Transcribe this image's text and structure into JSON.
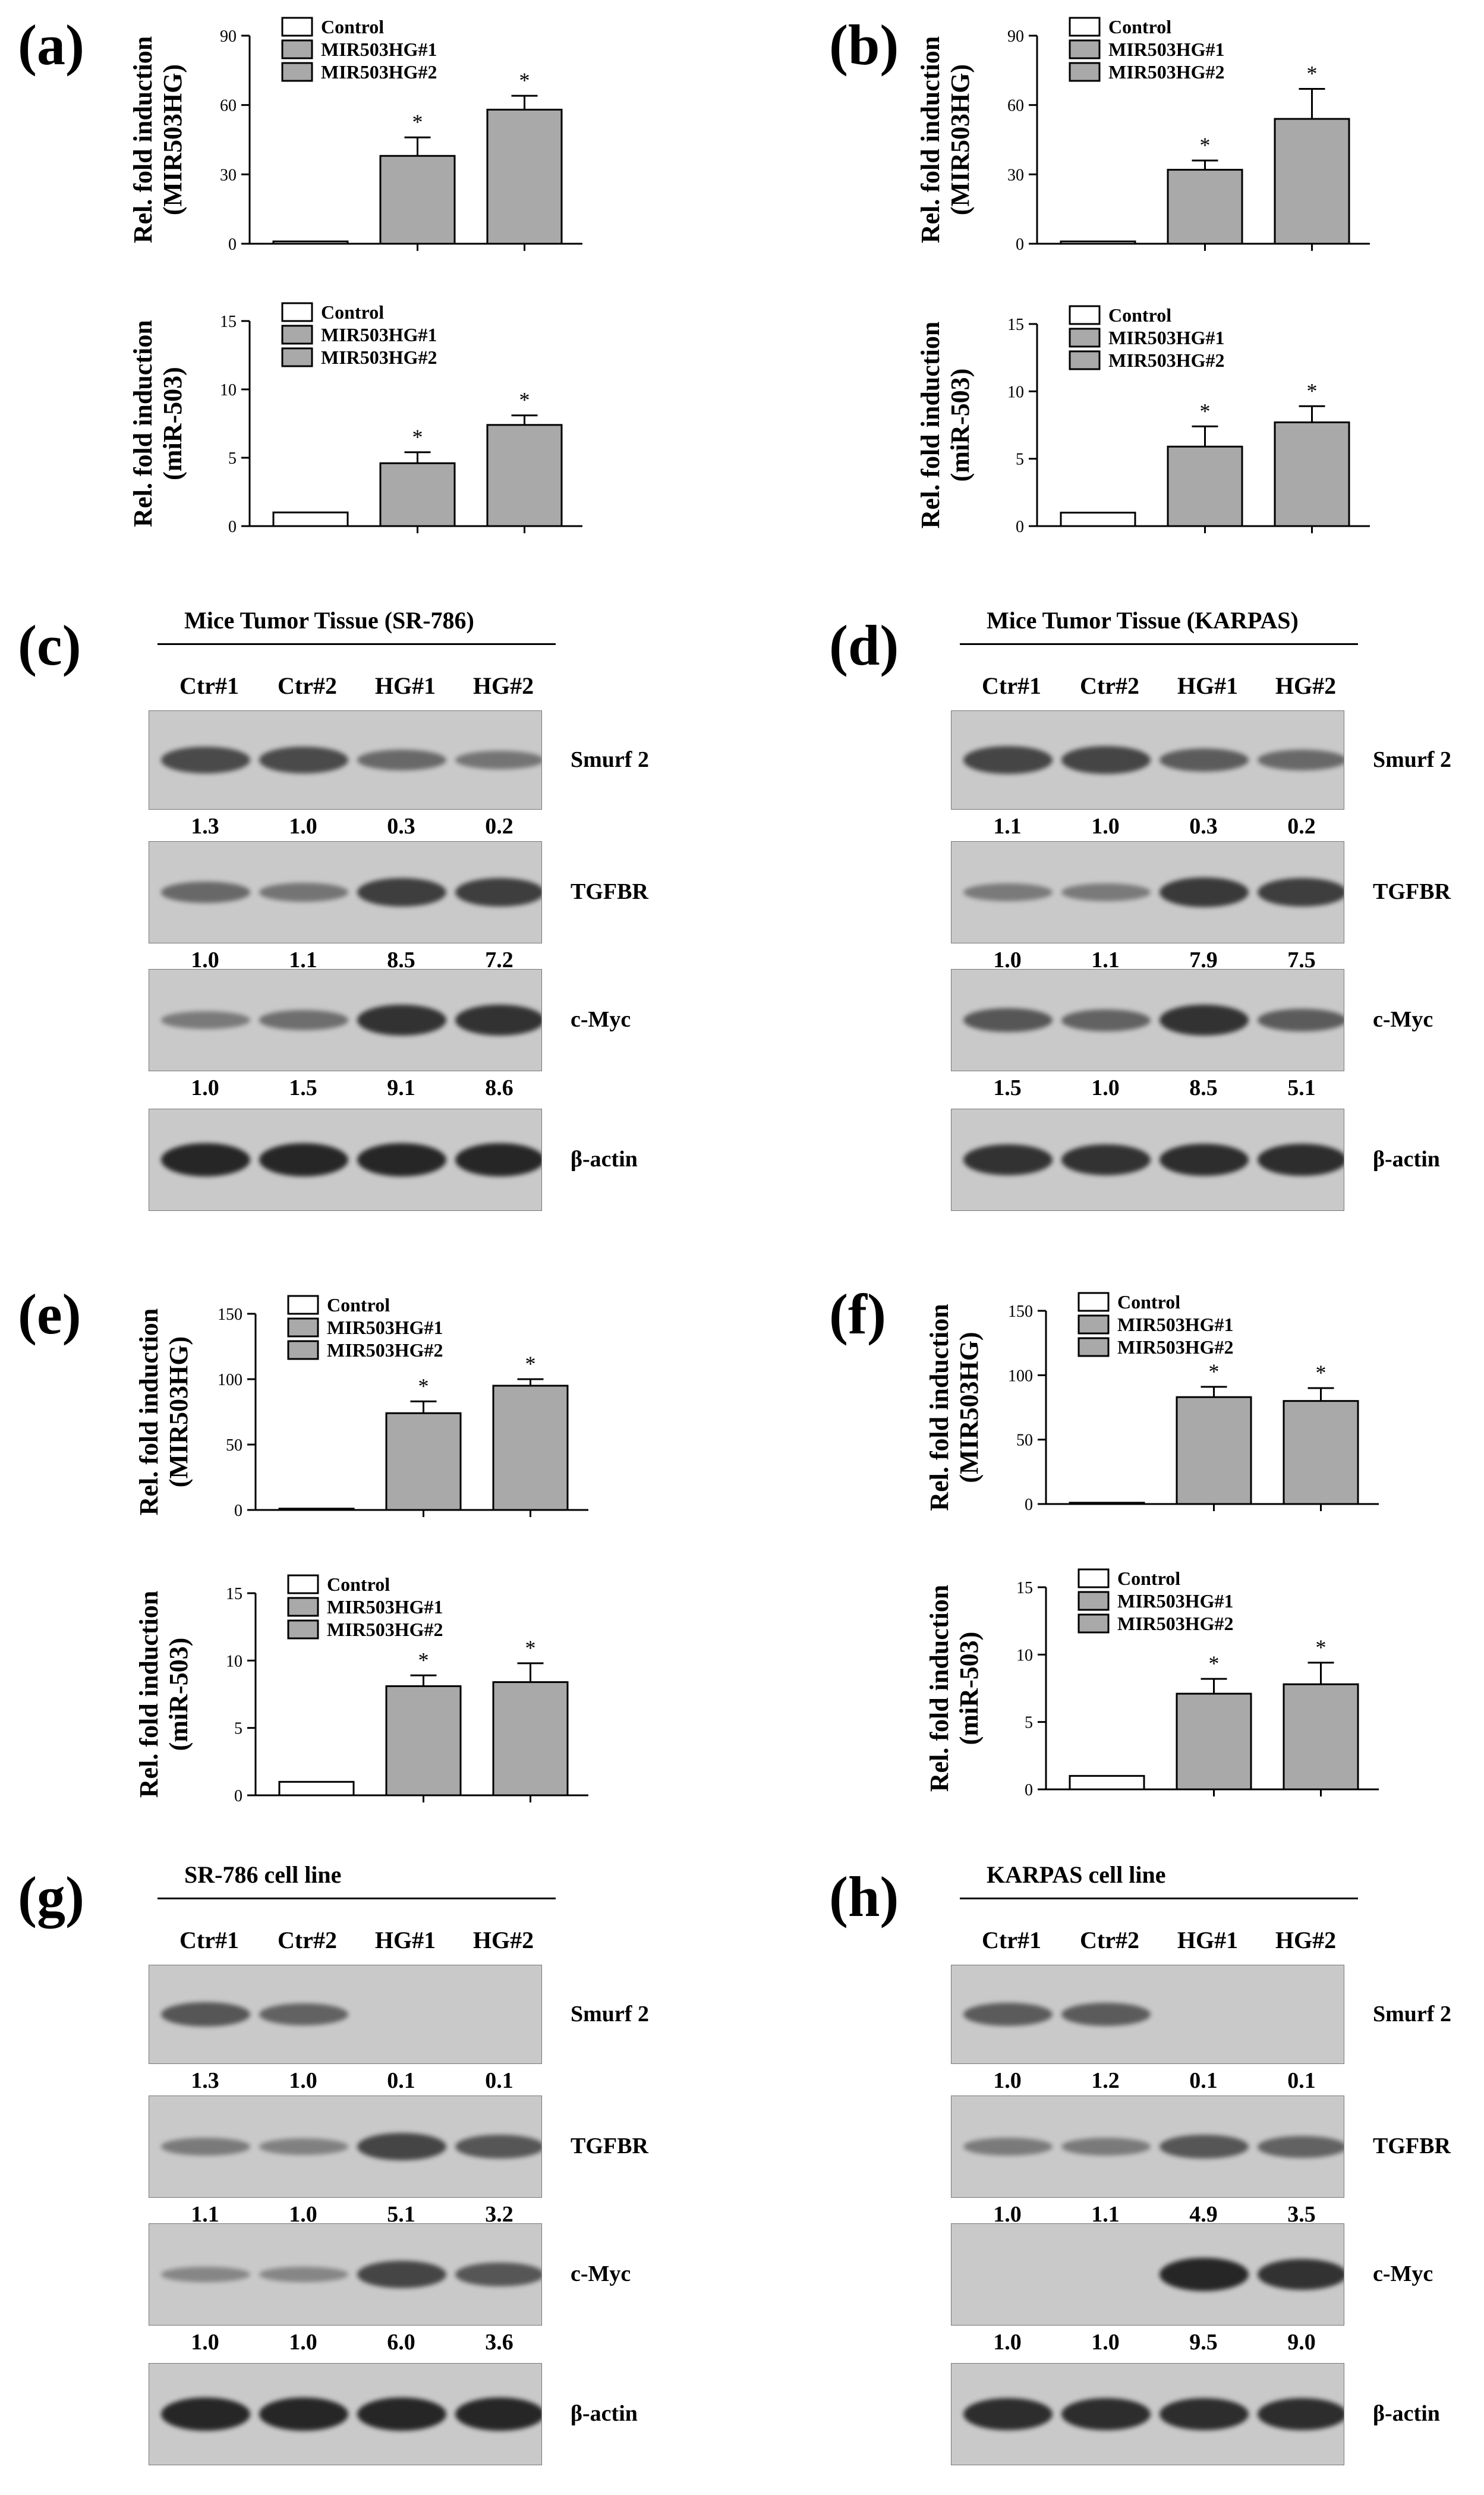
{
  "panels": [
    "(a)",
    "(b)",
    "(c)",
    "(d)",
    "(e)",
    "(f)",
    "(g)",
    "(h)"
  ],
  "legend": [
    "Control",
    "MIR503HG#1",
    "MIR503HG#2"
  ],
  "axis_labels": {
    "mir503hg": [
      "Rel. fold induction",
      "(MIR503HG)"
    ],
    "mir503": [
      "Rel. fold induction",
      "(miR-503)"
    ]
  },
  "significance_marker": "*",
  "chart_data": [
    {
      "id": "a-top",
      "type": "bar",
      "categories": [
        "Control",
        "MIR503HG#1",
        "MIR503HG#2"
      ],
      "values": [
        1,
        38,
        58
      ],
      "errors": [
        0,
        8,
        6
      ],
      "ylim": [
        0,
        90
      ],
      "yticks": [
        0,
        30,
        60,
        90
      ],
      "ylabel": "Rel. fold induction (MIR503HG)",
      "significant": [
        false,
        true,
        true
      ]
    },
    {
      "id": "a-bottom",
      "type": "bar",
      "categories": [
        "Control",
        "MIR503HG#1",
        "MIR503HG#2"
      ],
      "values": [
        1,
        4.6,
        7.4
      ],
      "errors": [
        0,
        0.8,
        0.7
      ],
      "ylim": [
        0,
        15
      ],
      "yticks": [
        0,
        5,
        10,
        15
      ],
      "ylabel": "Rel. fold induction (miR-503)",
      "significant": [
        false,
        true,
        true
      ]
    },
    {
      "id": "b-top",
      "type": "bar",
      "categories": [
        "Control",
        "MIR503HG#1",
        "MIR503HG#2"
      ],
      "values": [
        1,
        32,
        54
      ],
      "errors": [
        0,
        4,
        13
      ],
      "ylim": [
        0,
        90
      ],
      "yticks": [
        0,
        30,
        60,
        90
      ],
      "ylabel": "Rel. fold induction (MIR503HG)",
      "significant": [
        false,
        true,
        true
      ]
    },
    {
      "id": "b-bottom",
      "type": "bar",
      "categories": [
        "Control",
        "MIR503HG#1",
        "MIR503HG#2"
      ],
      "values": [
        1,
        5.9,
        7.7
      ],
      "errors": [
        0,
        1.5,
        1.2
      ],
      "ylim": [
        0,
        15
      ],
      "yticks": [
        0,
        5,
        10,
        15
      ],
      "ylabel": "Rel. fold induction (miR-503)",
      "significant": [
        false,
        true,
        true
      ]
    },
    {
      "id": "e-top",
      "type": "bar",
      "categories": [
        "Control",
        "MIR503HG#1",
        "MIR503HG#2"
      ],
      "values": [
        1,
        74,
        95
      ],
      "errors": [
        0,
        9,
        5
      ],
      "ylim": [
        0,
        150
      ],
      "yticks": [
        0,
        50,
        100,
        150
      ],
      "ylabel": "Rel. fold induction (MIR503HG)",
      "significant": [
        false,
        true,
        true
      ]
    },
    {
      "id": "e-bottom",
      "type": "bar",
      "categories": [
        "Control",
        "MIR503HG#1",
        "MIR503HG#2"
      ],
      "values": [
        1,
        8.1,
        8.4
      ],
      "errors": [
        0,
        0.8,
        1.4
      ],
      "ylim": [
        0,
        15
      ],
      "yticks": [
        0,
        5,
        10,
        15
      ],
      "ylabel": "Rel. fold induction (miR-503)",
      "significant": [
        false,
        true,
        true
      ]
    },
    {
      "id": "f-top",
      "type": "bar",
      "categories": [
        "Control",
        "MIR503HG#1",
        "MIR503HG#2"
      ],
      "values": [
        1,
        83,
        80
      ],
      "errors": [
        0,
        8,
        10
      ],
      "ylim": [
        0,
        150
      ],
      "yticks": [
        0,
        50,
        100,
        150
      ],
      "ylabel": "Rel. fold induction (MIR503HG)",
      "significant": [
        false,
        true,
        true
      ]
    },
    {
      "id": "f-bottom",
      "type": "bar",
      "categories": [
        "Control",
        "MIR503HG#1",
        "MIR503HG#2"
      ],
      "values": [
        1,
        7.1,
        7.8
      ],
      "errors": [
        0,
        1.1,
        1.6
      ],
      "ylim": [
        0,
        15
      ],
      "yticks": [
        0,
        5,
        10,
        15
      ],
      "ylabel": "Rel. fold induction (miR-503)",
      "significant": [
        false,
        true,
        true
      ]
    }
  ],
  "blots": {
    "c": {
      "title": "Mice Tumor Tissue (SR-786)",
      "lanes": [
        "Ctr#1",
        "Ctr#2",
        "HG#1",
        "HG#2"
      ],
      "rows": [
        {
          "protein": "Smurf 2",
          "intensity": [
            0.7,
            0.7,
            0.45,
            0.35
          ],
          "quant": [
            "1.3",
            "1.0",
            "0.3",
            "0.2"
          ]
        },
        {
          "protein": "TGFBR",
          "intensity": [
            0.45,
            0.35,
            0.8,
            0.8
          ],
          "quant": [
            "1.0",
            "1.1",
            "8.5",
            "7.2"
          ]
        },
        {
          "protein": "c-Myc",
          "intensity": [
            0.3,
            0.4,
            0.9,
            0.9
          ],
          "quant": [
            "1.0",
            "1.5",
            "9.1",
            "8.6"
          ]
        },
        {
          "protein": "β-actin",
          "intensity": [
            1,
            1,
            1,
            1
          ],
          "quant": []
        }
      ]
    },
    "d": {
      "title": "Mice Tumor Tissue (KARPAS)",
      "lanes": [
        "Ctr#1",
        "Ctr#2",
        "HG#1",
        "HG#2"
      ],
      "rows": [
        {
          "protein": "Smurf 2",
          "intensity": [
            0.75,
            0.75,
            0.55,
            0.45
          ],
          "quant": [
            "1.1",
            "1.0",
            "0.3",
            "0.2"
          ]
        },
        {
          "protein": "TGFBR",
          "intensity": [
            0.3,
            0.3,
            0.85,
            0.8
          ],
          "quant": [
            "1.0",
            "1.1",
            "7.9",
            "7.5"
          ]
        },
        {
          "protein": "c-Myc",
          "intensity": [
            0.6,
            0.5,
            0.9,
            0.55
          ],
          "quant": [
            "1.5",
            "1.0",
            "8.5",
            "5.1"
          ]
        },
        {
          "protein": "β-actin",
          "intensity": [
            0.9,
            0.9,
            0.95,
            0.95
          ],
          "quant": []
        }
      ]
    },
    "g": {
      "title": "SR-786 cell line",
      "lanes": [
        "Ctr#1",
        "Ctr#2",
        "HG#1",
        "HG#2"
      ],
      "rows": [
        {
          "protein": "Smurf 2",
          "intensity": [
            0.6,
            0.5,
            0.05,
            0.05
          ],
          "quant": [
            "1.3",
            "1.0",
            "0.1",
            "0.1"
          ]
        },
        {
          "protein": "TGFBR",
          "intensity": [
            0.3,
            0.25,
            0.75,
            0.6
          ],
          "quant": [
            "1.1",
            "1.0",
            "5.1",
            "3.2"
          ]
        },
        {
          "protein": "c-Myc",
          "intensity": [
            0.2,
            0.2,
            0.75,
            0.6
          ],
          "quant": [
            "1.0",
            "1.0",
            "6.0",
            "3.6"
          ]
        },
        {
          "protein": "β-actin",
          "intensity": [
            1,
            1,
            1,
            1
          ],
          "quant": []
        }
      ]
    },
    "h": {
      "title": "KARPAS cell line",
      "lanes": [
        "Ctr#1",
        "Ctr#2",
        "HG#1",
        "HG#2"
      ],
      "rows": [
        {
          "protein": "Smurf 2",
          "intensity": [
            0.55,
            0.55,
            0.05,
            0.05
          ],
          "quant": [
            "1.0",
            "1.2",
            "0.1",
            "0.1"
          ]
        },
        {
          "protein": "TGFBR",
          "intensity": [
            0.3,
            0.3,
            0.6,
            0.5
          ],
          "quant": [
            "1.0",
            "1.1",
            "4.9",
            "3.5"
          ]
        },
        {
          "protein": "c-Myc",
          "intensity": [
            0.05,
            0.05,
            1,
            0.9
          ],
          "quant": [
            "1.0",
            "1.0",
            "9.5",
            "9.0"
          ]
        },
        {
          "protein": "β-actin",
          "intensity": [
            0.95,
            0.95,
            0.95,
            0.95
          ],
          "quant": []
        }
      ]
    }
  },
  "colors": {
    "control_bar": "#ffffff",
    "treatment_bar": "#a9a9a9",
    "blot_bg": "#c9c9c9",
    "band": "#1e1e1e"
  }
}
